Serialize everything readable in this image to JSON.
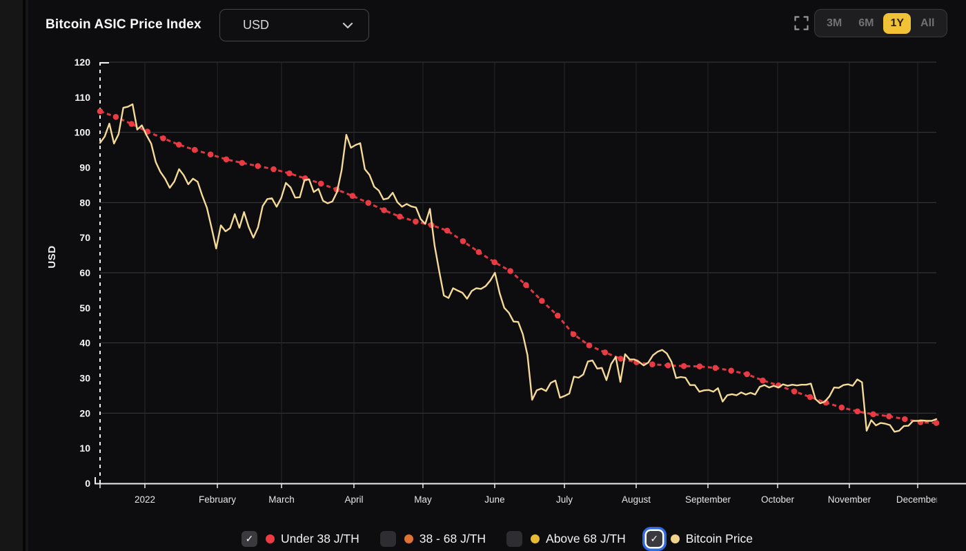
{
  "header": {
    "title": "Bitcoin ASIC Price Index",
    "currency_dropdown": {
      "value": "USD"
    },
    "range_buttons": {
      "options": [
        "3M",
        "6M",
        "1Y",
        "All"
      ],
      "active": "1Y"
    }
  },
  "colors": {
    "accent_yellow": "#f1c235",
    "series_red": "#dd3840",
    "series_red_marker": "#ea3b44",
    "series_gold": "#f5db97",
    "legend_red": "#ee3b43",
    "legend_orange": "#df7334",
    "legend_gold": "#e8ba33",
    "legend_pale_gold": "#efd28c",
    "focus_ring_blue": "#2f6ae0"
  },
  "legend": {
    "items": [
      {
        "label": "Under 38 J/TH",
        "checked": true,
        "focused": false,
        "dot_color": "#ee3b43"
      },
      {
        "label": "38 - 68 J/TH",
        "checked": false,
        "focused": false,
        "dot_color": "#df7334"
      },
      {
        "label": "Above 68 J/TH",
        "checked": false,
        "focused": false,
        "dot_color": "#e8ba33"
      },
      {
        "label": "Bitcoin Price",
        "checked": true,
        "focused": true,
        "dot_color": "#efd28c"
      }
    ]
  },
  "chart_data": {
    "type": "line",
    "title": "Bitcoin ASIC Price Index",
    "xlabel": "",
    "ylabel": "USD",
    "ylim": [
      0,
      120
    ],
    "y_ticks": [
      0,
      10,
      20,
      30,
      40,
      50,
      60,
      70,
      80,
      90,
      100,
      110,
      120
    ],
    "y_gridline_values": [
      20,
      40,
      60,
      80,
      100,
      120
    ],
    "grid": true,
    "legend_position": "bottom",
    "range_start_dashed_line": true,
    "x_ticks": {
      "labels": [
        "2022",
        "February",
        "March",
        "April",
        "May",
        "June",
        "July",
        "August",
        "September",
        "October",
        "November",
        "December"
      ],
      "positions": [
        0.0536,
        0.1403,
        0.217,
        0.3036,
        0.3861,
        0.4719,
        0.5553,
        0.6411,
        0.7269,
        0.8102,
        0.896,
        0.9777
      ]
    },
    "series": [
      {
        "name": "Under 38 J/TH",
        "style": "dashed-with-markers",
        "color": "#dd3840",
        "marker_color": "#ea3b44",
        "values": [
          106.0,
          104.4,
          102.4,
          100.2,
          98.3,
          96.5,
          95.0,
          93.7,
          92.3,
          91.3,
          90.4,
          89.5,
          88.3,
          86.9,
          85.4,
          83.7,
          81.9,
          79.9,
          77.8,
          76.0,
          74.6,
          73.6,
          72.0,
          69.0,
          65.9,
          63.0,
          60.5,
          56.5,
          52.0,
          47.8,
          42.5,
          39.3,
          37.3,
          35.5,
          34.5,
          33.9,
          33.6,
          33.4,
          33.3,
          32.9,
          32.1,
          31.1,
          29.3,
          27.9,
          26.2,
          24.6,
          23.0,
          21.6,
          20.5,
          19.7,
          19.1,
          18.3,
          17.4,
          17.2
        ]
      },
      {
        "name": "Bitcoin Price",
        "style": "solid",
        "color": "#f5db97",
        "values": [
          97.0,
          98.8,
          102.5,
          96.8,
          99.5,
          107.0,
          107.3,
          108.0,
          100.8,
          102.0,
          99.2,
          96.8,
          91.5,
          88.7,
          86.8,
          84.2,
          86.0,
          89.5,
          87.8,
          85.2,
          86.8,
          85.9,
          82.0,
          78.5,
          72.8,
          66.9,
          73.5,
          71.8,
          72.7,
          76.7,
          72.8,
          77.3,
          73.0,
          70.0,
          72.9,
          79.0,
          81.0,
          81.2,
          78.8,
          81.3,
          85.6,
          84.3,
          81.4,
          81.5,
          86.4,
          86.6,
          83.0,
          83.9,
          80.5,
          79.8,
          80.3,
          83.0,
          89.2,
          99.3,
          95.6,
          96.4,
          96.9,
          89.5,
          87.9,
          84.5,
          83.4,
          80.9,
          81.2,
          82.8,
          80.1,
          78.8,
          79.6,
          78.9,
          78.6,
          75.3,
          73.9,
          78.2,
          67.8,
          60.5,
          53.5,
          52.8,
          55.6,
          54.9,
          54.3,
          52.6,
          54.8,
          55.6,
          55.4,
          56.2,
          57.8,
          60.0,
          54.2,
          50.0,
          48.6,
          46.1,
          46.0,
          42.5,
          36.5,
          23.8,
          26.5,
          27.0,
          26.3,
          28.6,
          29.3,
          24.4,
          24.9,
          25.6,
          30.4,
          30.1,
          31.0,
          34.7,
          35.0,
          32.7,
          32.9,
          29.4,
          34.0,
          36.0,
          28.9,
          36.8,
          35.3,
          35.3,
          34.6,
          33.6,
          34.4,
          36.5,
          37.5,
          38.0,
          37.0,
          34.6,
          30.0,
          30.3,
          30.1,
          28.0,
          28.0,
          26.1,
          26.5,
          26.6,
          26.1,
          27.1,
          23.3,
          25.1,
          25.4,
          25.1,
          25.9,
          25.3,
          25.8,
          25.3,
          27.5,
          28.0,
          27.3,
          27.8,
          27.3,
          28.2,
          27.8,
          28.1,
          27.9,
          28.1,
          28.1,
          28.4,
          24.0,
          22.8,
          23.3,
          24.8,
          27.3,
          27.2,
          28.0,
          28.2,
          27.8,
          29.6,
          28.8,
          15.0,
          18.0,
          16.5,
          17.2,
          17.0,
          16.6,
          14.7,
          15.0,
          16.3,
          16.4,
          17.8,
          17.8,
          17.9,
          17.8,
          17.8,
          18.3
        ]
      }
    ]
  }
}
